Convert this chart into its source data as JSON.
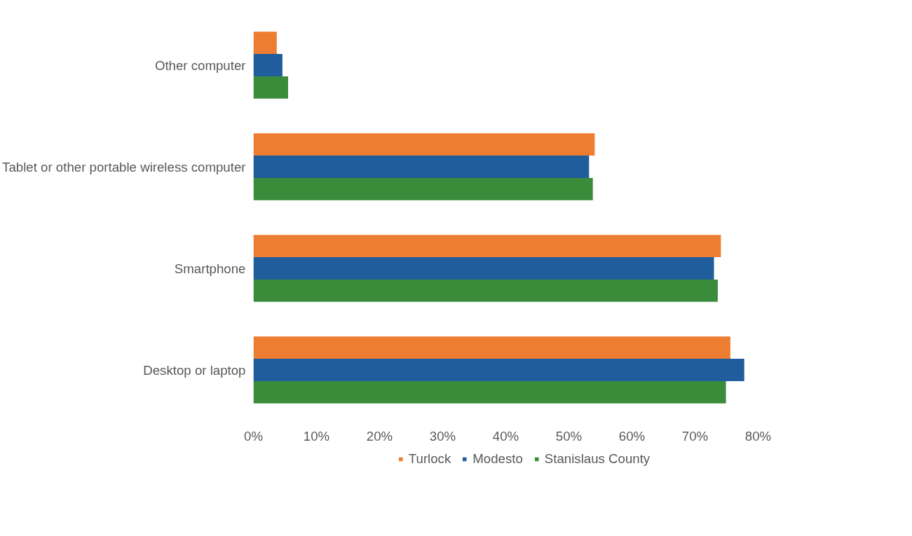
{
  "chart_data": {
    "type": "bar",
    "orientation": "horizontal",
    "categories": [
      "Other computer",
      "Tablet or other portable wireless computer",
      "Smartphone",
      "Desktop or laptop"
    ],
    "series": [
      {
        "name": "Turlock",
        "color": "#ed7d31",
        "values": [
          3.7,
          54.1,
          74.1,
          75.6
        ]
      },
      {
        "name": "Modesto",
        "color": "#1f5d9c",
        "values": [
          4.6,
          53.2,
          73.0,
          77.8
        ]
      },
      {
        "name": "Stanislaus County",
        "color": "#3a8c3a",
        "values": [
          5.5,
          53.8,
          73.6,
          74.9
        ]
      }
    ],
    "xlim": [
      0,
      80
    ],
    "xticks": [
      {
        "value": 0,
        "label": "0%"
      },
      {
        "value": 10,
        "label": "10%"
      },
      {
        "value": 20,
        "label": "20%"
      },
      {
        "value": 30,
        "label": "30%"
      },
      {
        "value": 40,
        "label": "40%"
      },
      {
        "value": 50,
        "label": "50%"
      },
      {
        "value": 60,
        "label": "60%"
      },
      {
        "value": 70,
        "label": "70%"
      },
      {
        "value": 80,
        "label": "80%"
      }
    ],
    "grid": false,
    "legend": "bottom"
  }
}
